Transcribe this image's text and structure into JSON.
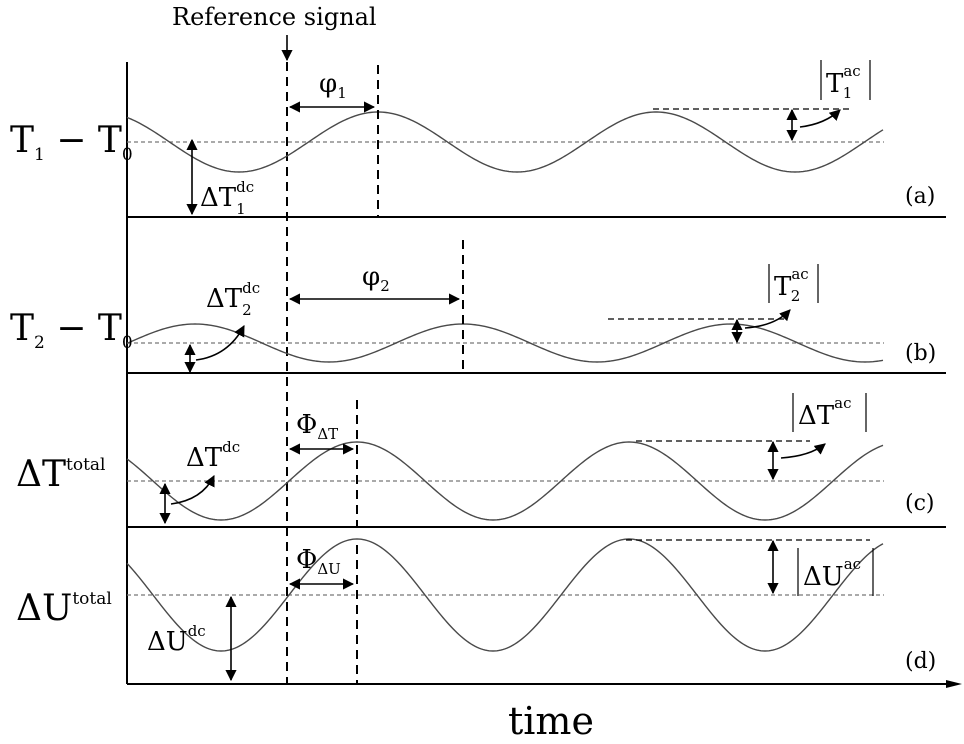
{
  "reference_label": "Reference signal",
  "time_label": "time",
  "panels": [
    {
      "id": "a",
      "tag": "(a)",
      "ylabel": {
        "main": "T",
        "sub1": "1",
        "mid": " − T",
        "sub2": "0"
      },
      "dc_label": {
        "main": "ΔT",
        "sup": "dc",
        "sub": "1"
      },
      "phase_label": {
        "main": "φ",
        "sub": "1"
      },
      "ac_label": {
        "main": "T",
        "sup": "ac",
        "sub": "1"
      }
    },
    {
      "id": "b",
      "tag": "(b)",
      "ylabel": {
        "main": "T",
        "sub1": "2",
        "mid": " − T",
        "sub2": "0"
      },
      "dc_label": {
        "main": "ΔT",
        "sup": "dc",
        "sub": "2"
      },
      "phase_label": {
        "main": "φ",
        "sub": "2"
      },
      "ac_label": {
        "main": "T",
        "sup": "ac",
        "sub": "2"
      }
    },
    {
      "id": "c",
      "tag": "(c)",
      "ylabel": {
        "main": "ΔT",
        "sup": "total"
      },
      "dc_label": {
        "main": "ΔT",
        "sup": "dc"
      },
      "phase_label": {
        "main": "Φ",
        "sub": "ΔT"
      },
      "ac_label": {
        "main": "ΔT",
        "sup": "ac"
      }
    },
    {
      "id": "d",
      "tag": "(d)",
      "ylabel": {
        "main": "ΔU",
        "sup": "total"
      },
      "dc_label": {
        "main": "ΔU",
        "sup": "dc"
      },
      "phase_label": {
        "main": "Φ",
        "sub": "ΔU"
      },
      "ac_label": {
        "main": "ΔU",
        "sup": "ac"
      }
    }
  ]
}
